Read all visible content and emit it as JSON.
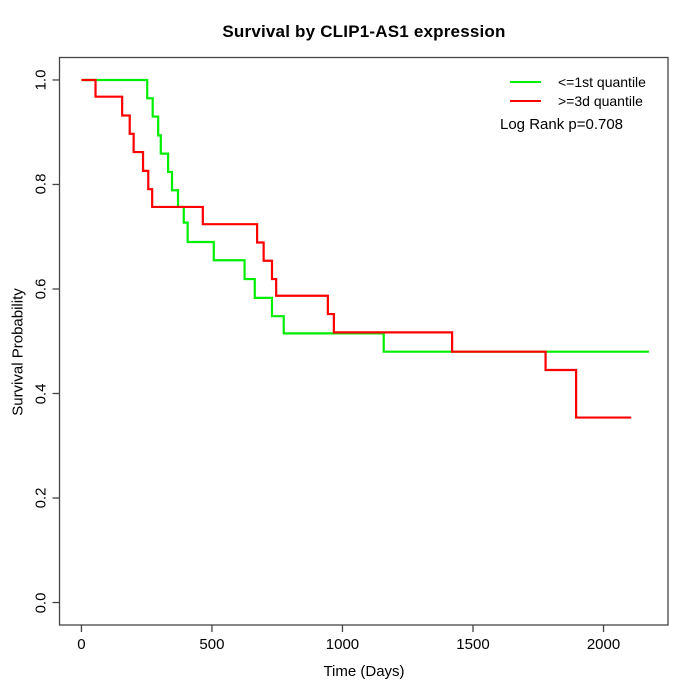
{
  "chart_data": {
    "type": "line",
    "subtype": "kaplan-meier-step",
    "title": "Survival by CLIP1-AS1 expression",
    "xlabel": "Time (Days)",
    "ylabel": "Survival Probability",
    "grid": false,
    "legend_position": "topright",
    "annotation": "Log Rank p=0.708",
    "xlim": [
      -84,
      2247
    ],
    "ylim": [
      -0.043,
      1.043
    ],
    "xticks": [
      {
        "value": 0,
        "label": "0"
      },
      {
        "value": 500,
        "label": "500"
      },
      {
        "value": 1000,
        "label": "1000"
      },
      {
        "value": 1500,
        "label": "1500"
      },
      {
        "value": 2000,
        "label": "2000"
      }
    ],
    "yticks": [
      {
        "value": 0.0,
        "label": "0.0"
      },
      {
        "value": 0.2,
        "label": "0.2"
      },
      {
        "value": 0.4,
        "label": "0.4"
      },
      {
        "value": 0.6,
        "label": "0.6"
      },
      {
        "value": 0.8,
        "label": "0.8"
      },
      {
        "value": 1.0,
        "label": "1.0"
      }
    ],
    "series": [
      {
        "name": "<=1st quantile",
        "color": "#00ee00",
        "end_time": 2174,
        "steps": [
          [
            0,
            1.0
          ],
          [
            252,
            0.965
          ],
          [
            273,
            0.93
          ],
          [
            294,
            0.894
          ],
          [
            304,
            0.859
          ],
          [
            332,
            0.824
          ],
          [
            347,
            0.789
          ],
          [
            370,
            0.757
          ],
          [
            392,
            0.727
          ],
          [
            407,
            0.69
          ],
          [
            507,
            0.655
          ],
          [
            625,
            0.619
          ],
          [
            664,
            0.583
          ],
          [
            730,
            0.548
          ],
          [
            775,
            0.515
          ],
          [
            1158,
            0.48
          ]
        ]
      },
      {
        "name": ">=3d quantile",
        "color": "#ff0000",
        "end_time": 2106,
        "steps": [
          [
            0,
            1.0
          ],
          [
            54,
            0.968
          ],
          [
            156,
            0.932
          ],
          [
            185,
            0.897
          ],
          [
            200,
            0.862
          ],
          [
            236,
            0.826
          ],
          [
            256,
            0.791
          ],
          [
            271,
            0.757
          ],
          [
            465,
            0.724
          ],
          [
            673,
            0.689
          ],
          [
            698,
            0.654
          ],
          [
            730,
            0.619
          ],
          [
            746,
            0.587
          ],
          [
            944,
            0.552
          ],
          [
            967,
            0.517
          ],
          [
            1420,
            0.48
          ],
          [
            1778,
            0.445
          ],
          [
            1895,
            0.354
          ]
        ]
      }
    ]
  },
  "legend": {
    "items": [
      {
        "label": "<=1st quantile",
        "color": "#00ee00"
      },
      {
        "label": ">=3d quantile",
        "color": "#ff0000"
      }
    ],
    "annotation": "Log Rank p=0.708"
  }
}
